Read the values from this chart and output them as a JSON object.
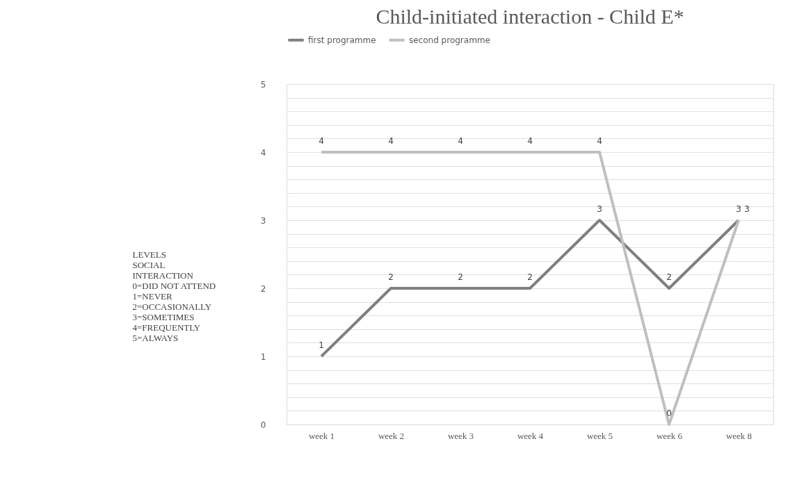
{
  "chart_data": {
    "type": "line",
    "title": "Child-initiated interaction - Child E*",
    "ylabel": "LEVELS\nSOCIAL\nINTERACTION\n0=DID NOT ATTEND\n1=NEVER\n2=OCCASIONALLY\n3=SOMETIMES\n4=FREQUENTLY\n5=ALWAYS",
    "categories": [
      "week 1",
      "week 2",
      "week 3",
      "week 4",
      "week 5",
      "week 6",
      "week 8"
    ],
    "series": [
      {
        "name": "first programme",
        "color": "#7f7f7f",
        "values": [
          1,
          2,
          2,
          2,
          3,
          2,
          3
        ]
      },
      {
        "name": "second programme",
        "color": "#bfbfbf",
        "values": [
          4,
          4,
          4,
          4,
          4,
          0,
          3
        ]
      }
    ],
    "ylim": [
      0,
      5
    ],
    "yticks": [
      0,
      {
        "value": 0.2,
        "label": null
      },
      {
        "value": 0.4,
        "label": null
      },
      {
        "value": 0.6,
        "label": null
      },
      {
        "value": 0.8,
        "label": null
      },
      1,
      {
        "value": 1.2,
        "label": null
      },
      {
        "value": 1.4,
        "label": null
      },
      {
        "value": 1.6,
        "label": null
      },
      {
        "value": 1.8,
        "label": null
      },
      2,
      {
        "value": 2.2,
        "label": null
      },
      {
        "value": 2.4,
        "label": null
      },
      {
        "value": 2.6,
        "label": null
      },
      {
        "value": 2.8,
        "label": null
      },
      3,
      {
        "value": 3.2,
        "label": null
      },
      {
        "value": 3.4,
        "label": null
      },
      {
        "value": 3.6,
        "label": null
      },
      {
        "value": 3.8,
        "label": null
      },
      4,
      {
        "value": 4.2,
        "label": null
      },
      {
        "value": 4.4,
        "label": null
      },
      {
        "value": 4.6,
        "label": null
      },
      {
        "value": 4.8,
        "label": null
      },
      5
    ],
    "grid": "y",
    "legend": "top",
    "data_labels": true,
    "marker": "none",
    "line_style": "solid"
  }
}
